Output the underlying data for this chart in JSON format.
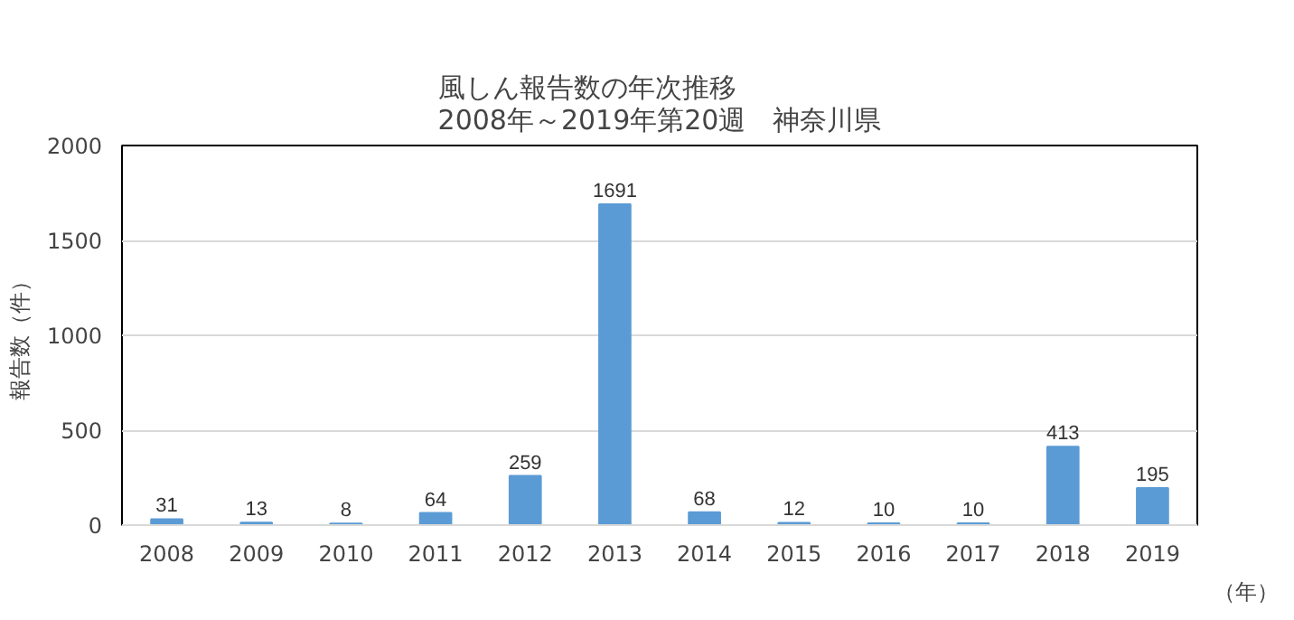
{
  "chart_data": {
    "type": "bar",
    "title": "風しん報告数の年次推移\n2008年～2019年第20週　神奈川県",
    "ylabel": "報告数（件）",
    "xlabel": "（年）",
    "categories": [
      "2008",
      "2009",
      "2010",
      "2011",
      "2012",
      "2013",
      "2014",
      "2015",
      "2016",
      "2017",
      "2018",
      "2019"
    ],
    "values": [
      31,
      13,
      8,
      64,
      259,
      1691,
      68,
      12,
      10,
      10,
      413,
      195
    ],
    "color": "#5b9bd5",
    "ylim": [
      0,
      2000
    ],
    "yticks": [
      0,
      500,
      1000,
      1500,
      2000
    ],
    "grid": "y",
    "data_labels": true
  }
}
